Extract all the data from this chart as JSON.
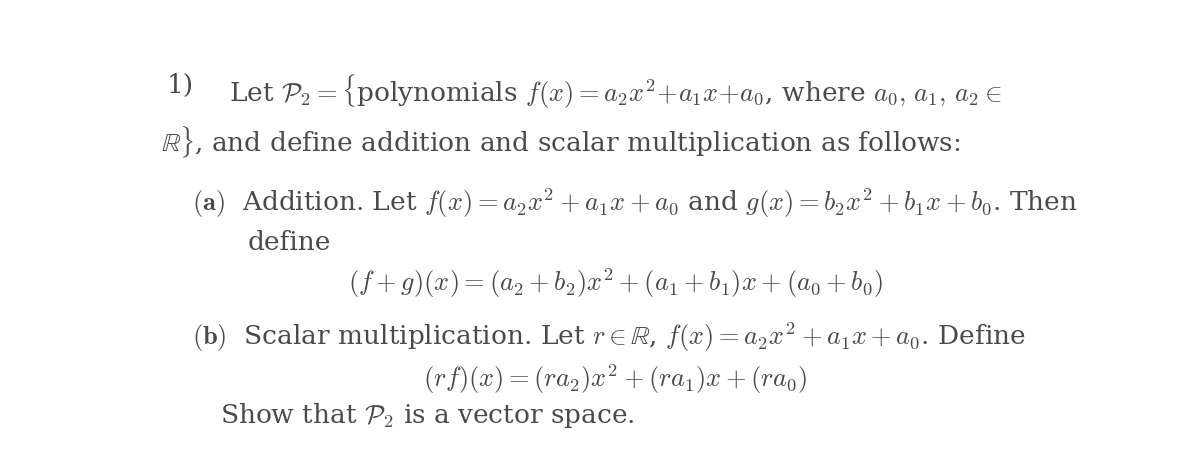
{
  "background_color": "#ffffff",
  "figsize": [
    12.0,
    4.7
  ],
  "dpi": 100,
  "text_color": "#4a4a4a",
  "fontsize": 19
}
